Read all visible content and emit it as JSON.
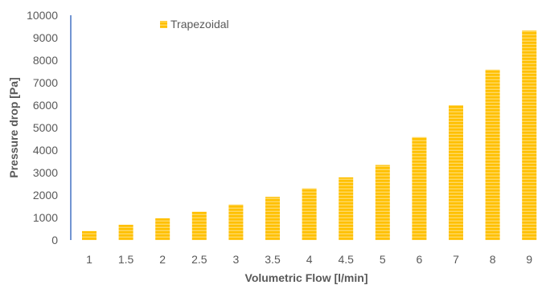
{
  "chart_data": {
    "type": "bar",
    "categories": [
      "1",
      "1.5",
      "2",
      "2.5",
      "3",
      "3.5",
      "4",
      "4.5",
      "5",
      "6",
      "7",
      "8",
      "9"
    ],
    "series": [
      {
        "name": "Trapezoidal",
        "values": [
          400,
          680,
          970,
          1260,
          1580,
          1920,
          2300,
          2790,
          3340,
          4580,
          6000,
          7580,
          9320
        ],
        "color": "#FFC000"
      }
    ],
    "title": "",
    "xlabel": "Volumetric Flow [l/min]",
    "ylabel": "Pressure drop [Pa]",
    "ylim": [
      0,
      10000
    ],
    "yticks": [
      0,
      1000,
      2000,
      3000,
      4000,
      5000,
      6000,
      7000,
      8000,
      9000,
      10000
    ],
    "grid": false,
    "legend_position": "top-left",
    "axis_color": "#4472C4"
  }
}
